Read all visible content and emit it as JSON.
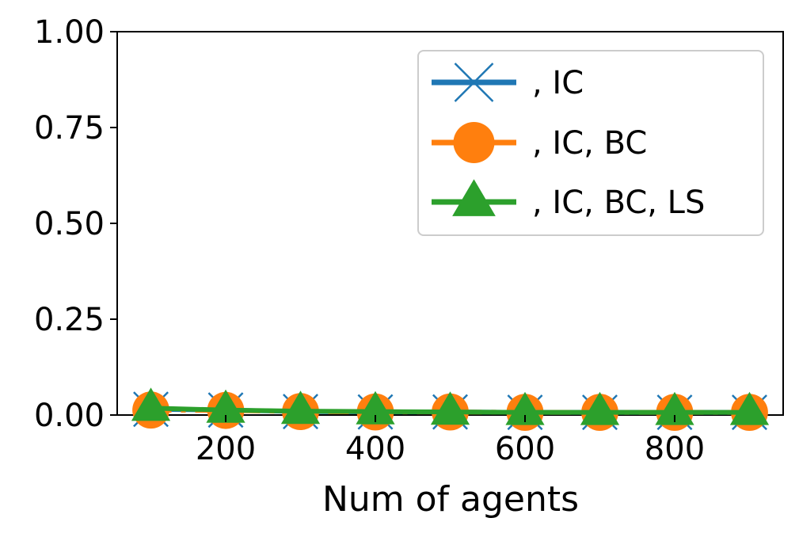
{
  "chart_data": {
    "type": "line",
    "title": "",
    "xlabel": "Num of agents",
    "ylabel": "",
    "x": [
      100,
      200,
      300,
      400,
      500,
      600,
      700,
      800,
      900
    ],
    "xlim": [
      55,
      945
    ],
    "ylim": [
      0,
      1
    ],
    "xticks": [
      200,
      400,
      600,
      800
    ],
    "xtick_labels": [
      "200",
      "400",
      "600",
      "800"
    ],
    "yticks": [
      0,
      0.25,
      0.5,
      0.75,
      1
    ],
    "ytick_labels": [
      "0.00",
      "0.25",
      "0.50",
      "0.75",
      "1.00"
    ],
    "grid": false,
    "legend_position": "top-right",
    "series": [
      {
        "name": ", IC",
        "color": "#1f77b4",
        "marker": "x",
        "line_style": "solid",
        "values": [
          0.015,
          0.013,
          0.009,
          0.008,
          0.008,
          0.007,
          0.007,
          0.007,
          0.007
        ]
      },
      {
        "name": ", IC, BC",
        "color": "#ff7f0e",
        "marker": "circle",
        "line_style": "dashdot",
        "values": [
          0.013,
          0.012,
          0.009,
          0.008,
          0.008,
          0.007,
          0.007,
          0.007,
          0.007
        ]
      },
      {
        "name": ", IC, BC, LS",
        "color": "#2ca02c",
        "marker": "triangle",
        "line_style": "solid",
        "values": [
          0.018,
          0.013,
          0.01,
          0.009,
          0.008,
          0.007,
          0.007,
          0.007,
          0.007
        ]
      }
    ]
  }
}
